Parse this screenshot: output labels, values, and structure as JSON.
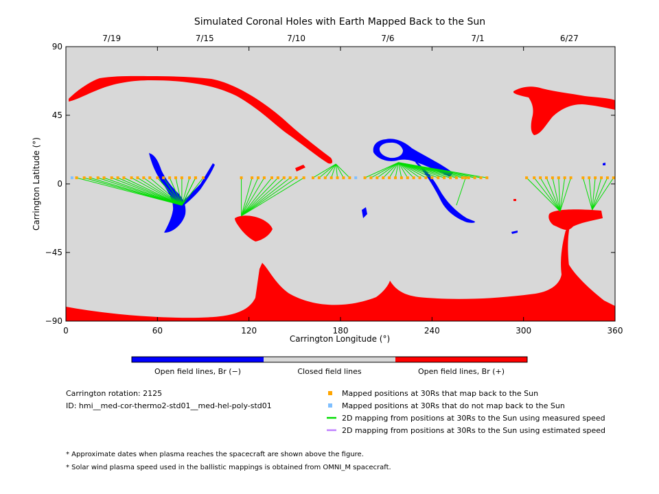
{
  "chart_data": {
    "type": "scatter",
    "title": "Simulated Coronal Holes with Earth Mapped Back to the Sun",
    "xlabel": "Carrington Longitude (°)",
    "ylabel": "Carrington Latitude (°)",
    "xlim": [
      0,
      360
    ],
    "ylim": [
      -90,
      90
    ],
    "x_ticks": [
      0,
      60,
      120,
      180,
      240,
      300,
      360
    ],
    "y_ticks": [
      90,
      45,
      0,
      -45,
      -90
    ],
    "y_tick_labels": [
      "90",
      "45",
      "0",
      "−45",
      "−90"
    ],
    "top_dates": [
      {
        "label": "7/19",
        "lon": 30
      },
      {
        "label": "7/15",
        "lon": 91
      },
      {
        "label": "7/10",
        "lon": 151
      },
      {
        "label": "7/6",
        "lon": 211
      },
      {
        "label": "7/1",
        "lon": 270
      },
      {
        "label": "6/27",
        "lon": 330
      }
    ],
    "colors": {
      "background": "#d8d8d8",
      "open_negative": "#0000ff",
      "closed": "#d8d8d8",
      "open_positive": "#ff0000",
      "mapped": "#ffa500",
      "not_mapped": "#7fbfff",
      "measured_line": "#00dd00",
      "estimated_line": "#bf7fff"
    },
    "colorbar": [
      {
        "label": "Open field lines, Br (−)",
        "color": "#0000ff"
      },
      {
        "label": "Closed field lines",
        "color": "#d8d8d8"
      },
      {
        "label": "Open field lines, Br (+)",
        "color": "#ff0000"
      }
    ],
    "legend": [
      {
        "label": "Mapped positions at 30Rs that map back to the Sun",
        "kind": "square",
        "color": "#ffa500"
      },
      {
        "label": "Mapped positions at 30Rs that do not map back to the Sun",
        "kind": "square",
        "color": "#7fbfff"
      },
      {
        "label": "2D mapping from positions at 30Rs to the Sun using measured speed",
        "kind": "line",
        "color": "#00dd00"
      },
      {
        "label": "2D mapping from positions at 30Rs to the Sun using estimated speed",
        "kind": "line",
        "color": "#bf7fff"
      }
    ],
    "mapping_groups": [
      {
        "anchor": [
          7,
          4
        ],
        "target": [
          76,
          -14
        ],
        "sources": [
          7,
          12,
          16,
          21,
          25,
          30,
          34,
          38,
          43,
          47,
          51,
          55,
          60,
          64,
          68,
          72,
          76,
          81,
          85
        ]
      },
      {
        "anchor": [
          85,
          4
        ],
        "target": [
          76,
          -14
        ],
        "sources": [
          85,
          90
        ]
      },
      {
        "anchor": [
          115,
          4
        ],
        "target": [
          115,
          -21
        ],
        "sources": [
          115,
          122,
          126,
          130,
          135,
          139,
          143,
          147,
          151,
          156
        ]
      },
      {
        "anchor": [
          162,
          4
        ],
        "target": [
          177,
          13
        ],
        "sources": [
          162,
          166,
          170,
          174,
          178,
          182,
          186
        ]
      },
      {
        "anchor": [
          196,
          4
        ],
        "target": [
          218,
          14
        ],
        "sources": [
          196,
          200,
          204,
          208,
          212,
          216,
          220,
          224,
          228,
          232,
          236,
          240,
          244,
          248,
          252,
          256,
          260,
          264,
          268,
          272,
          276
        ]
      },
      {
        "anchor": [
          262,
          4
        ],
        "target": [
          256,
          -14
        ],
        "sources": [
          262
        ]
      },
      {
        "anchor": [
          302,
          4
        ],
        "target": [
          324,
          -18
        ],
        "sources": [
          302,
          307,
          311,
          315,
          319,
          323,
          327,
          331
        ]
      },
      {
        "anchor": [
          339,
          4
        ],
        "target": [
          345,
          -17
        ],
        "sources": [
          339,
          343,
          347,
          351,
          355,
          359
        ]
      }
    ],
    "not_mapped_points": [
      [
        4,
        4
      ],
      [
        190,
        4
      ]
    ]
  },
  "annotations": {
    "rotation": "Carrington rotation: 2125",
    "id": "ID: hmi__med-cor-thermo2-std01__med-hel-poly-std01",
    "notes": [
      "* Approximate dates when plasma reaches the spacecraft are shown above the figure.",
      "* Solar wind plasma speed used in the ballistic mappings is obtained from OMNI_M spacecraft."
    ]
  }
}
